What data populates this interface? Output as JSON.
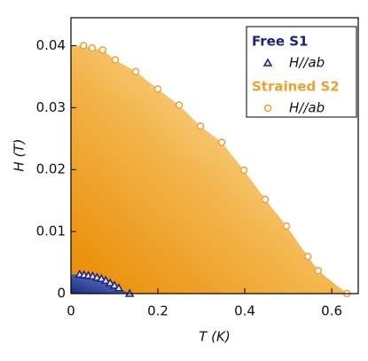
{
  "chart_data": {
    "type": "scatter",
    "xlabel": "T (K)",
    "ylabel": "H (T)",
    "xlim": [
      0,
      0.661
    ],
    "ylim": [
      0,
      0.0445
    ],
    "xticks": [
      0,
      0.2,
      0.4,
      0.6
    ],
    "yticks": [
      0,
      0.01,
      0.02,
      0.03,
      0.04
    ],
    "series": [
      {
        "group": "Free S1",
        "name": "H//ab",
        "marker": "triangle",
        "color": "#1a237e",
        "x": [
          0.02,
          0.03,
          0.04,
          0.05,
          0.06,
          0.07,
          0.08,
          0.09,
          0.1,
          0.11,
          0.135
        ],
        "values": [
          0.0031,
          0.003,
          0.0029,
          0.0028,
          0.0026,
          0.0024,
          0.0021,
          0.0017,
          0.0013,
          0.0009,
          0.0
        ]
      },
      {
        "group": "Strained S2",
        "name": "H//ab",
        "marker": "circle",
        "color": "#f0a030",
        "x": [
          0.029,
          0.049,
          0.073,
          0.102,
          0.149,
          0.2,
          0.249,
          0.298,
          0.347,
          0.398,
          0.447,
          0.496,
          0.545,
          0.569,
          0.635
        ],
        "values": [
          0.04,
          0.0396,
          0.0393,
          0.0377,
          0.0358,
          0.033,
          0.0304,
          0.027,
          0.0244,
          0.0199,
          0.0152,
          0.0109,
          0.006,
          0.0037,
          0.0
        ]
      }
    ]
  }
}
